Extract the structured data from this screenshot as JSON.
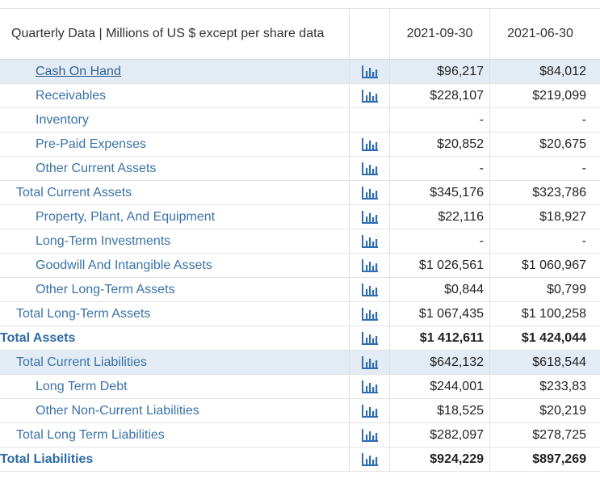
{
  "header": {
    "title": "Quarterly Data | Millions of US $ except per share data",
    "dates": [
      "2021-09-30",
      "2021-06-30"
    ]
  },
  "rows": [
    {
      "label": "Cash On Hand",
      "v1": "$96,217",
      "v2": "$84,012",
      "level": 2,
      "chart": true,
      "link": true,
      "highlight": true
    },
    {
      "label": "Receivables",
      "v1": "$228,107",
      "v2": "$219,099",
      "level": 2,
      "chart": true
    },
    {
      "label": "Inventory",
      "v1": "-",
      "v2": "-",
      "level": 2,
      "chart": false
    },
    {
      "label": "Pre-Paid Expenses",
      "v1": "$20,852",
      "v2": "$20,675",
      "level": 2,
      "chart": true
    },
    {
      "label": "Other Current Assets",
      "v1": "-",
      "v2": "-",
      "level": 2,
      "chart": true
    },
    {
      "label": "Total Current Assets",
      "v1": "$345,176",
      "v2": "$323,786",
      "level": 1,
      "chart": true
    },
    {
      "label": "Property, Plant, And Equipment",
      "v1": "$22,116",
      "v2": "$18,927",
      "level": 2,
      "chart": true
    },
    {
      "label": "Long-Term Investments",
      "v1": "-",
      "v2": "-",
      "level": 2,
      "chart": true
    },
    {
      "label": "Goodwill And Intangible Assets",
      "v1": "$1 026,561",
      "v2": "$1 060,967",
      "level": 2,
      "chart": true
    },
    {
      "label": "Other Long-Term Assets",
      "v1": "$0,844",
      "v2": "$0,799",
      "level": 2,
      "chart": true
    },
    {
      "label": "Total Long-Term Assets",
      "v1": "$1 067,435",
      "v2": "$1 100,258",
      "level": 1,
      "chart": true
    },
    {
      "label": "Total Assets",
      "v1": "$1 412,611",
      "v2": "$1 424,044",
      "level": 0,
      "chart": true
    },
    {
      "label": "Total Current Liabilities",
      "v1": "$642,132",
      "v2": "$618,544",
      "level": 1,
      "chart": true,
      "highlight": true
    },
    {
      "label": "Long Term Debt",
      "v1": "$244,001",
      "v2": "$233,83",
      "level": 2,
      "chart": true
    },
    {
      "label": "Other Non-Current Liabilities",
      "v1": "$18,525",
      "v2": "$20,219",
      "level": 2,
      "chart": true
    },
    {
      "label": "Total Long Term Liabilities",
      "v1": "$282,097",
      "v2": "$278,725",
      "level": 1,
      "chart": true
    },
    {
      "label": "Total Liabilities",
      "v1": "$924,229",
      "v2": "$897,269",
      "level": 0,
      "chart": true
    }
  ],
  "icons": {
    "chart": "bar-chart-icon"
  },
  "colors": {
    "label": "#3b72a8",
    "highlight": "#e3ecf5",
    "icon": "#2e6db4"
  }
}
